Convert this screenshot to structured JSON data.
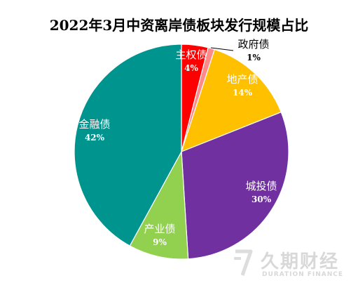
{
  "chart_data": {
    "type": "pie",
    "title": "2022年3月中资离岸债板块发行规模占比",
    "slices": [
      {
        "name": "主权债",
        "value": 4,
        "label": "4%",
        "color": "#ff0000"
      },
      {
        "name": "政府债",
        "value": 1,
        "label": "1%",
        "color": "#ff8a8a"
      },
      {
        "name": "地产债",
        "value": 14,
        "label": "14%",
        "color": "#ffc000"
      },
      {
        "name": "城投债",
        "value": 30,
        "label": "30%",
        "color": "#7030a0"
      },
      {
        "name": "产业债",
        "value": 9,
        "label": "9%",
        "color": "#92d050"
      },
      {
        "name": "金融债",
        "value": 42,
        "label": "42%",
        "color": "#00948f"
      }
    ],
    "start_angle": "12 o'clock, clockwise",
    "legend": "none"
  },
  "watermark": {
    "cn": "久期财经",
    "en": "DURATION FINANCE"
  }
}
